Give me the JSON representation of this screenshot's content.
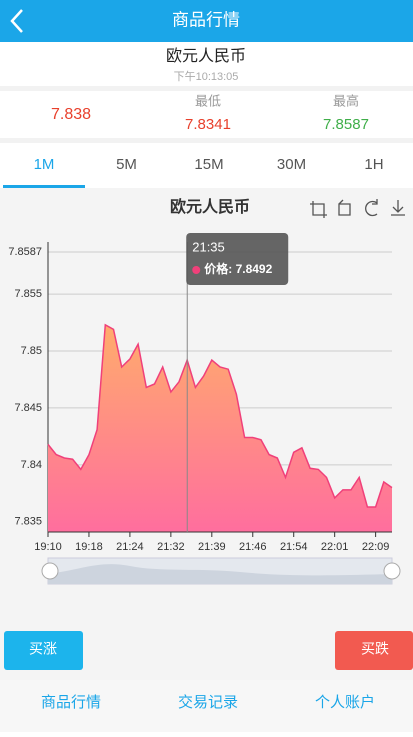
{
  "header": {
    "title": "商品行情"
  },
  "instrument": {
    "name": "欧元人民币",
    "time": "下午10:13:05"
  },
  "quote": {
    "current": 7.838,
    "low_label": "最低",
    "low": 7.8341,
    "high_label": "最高",
    "high": 7.8587
  },
  "tabs": [
    "1M",
    "5M",
    "15M",
    "30M",
    "1H"
  ],
  "chart_data": {
    "type": "area",
    "title": "欧元人民币",
    "categories": [
      "19:10",
      null,
      null,
      null,
      null,
      "19:18",
      null,
      null,
      null,
      null,
      "21:24",
      null,
      null,
      null,
      null,
      "21:32",
      null,
      null,
      null,
      null,
      "21:39",
      null,
      null,
      null,
      null,
      "21:46",
      null,
      null,
      null,
      null,
      "21:54",
      null,
      null,
      null,
      null,
      "22:01",
      null,
      null,
      null,
      null,
      "22:09",
      null,
      null
    ],
    "series": [
      {
        "color": "#f0407a",
        "values": [
          7.8418,
          7.8409,
          7.8406,
          7.8405,
          7.8396,
          7.8409,
          7.8431,
          7.8523,
          7.8519,
          7.8486,
          7.8493,
          7.8506,
          7.8468,
          7.8471,
          7.8486,
          7.8464,
          7.8473,
          7.8492,
          7.8468,
          7.8478,
          7.8492,
          7.8486,
          7.8484,
          7.8462,
          7.8424,
          7.8424,
          7.8422,
          7.8409,
          7.8406,
          7.8389,
          7.8411,
          7.8415,
          7.8397,
          7.8396,
          7.8389,
          7.8371,
          7.8378,
          7.8378,
          7.8389,
          7.8363,
          7.8363,
          7.8385,
          7.838
        ]
      }
    ],
    "ylim": [
      7.8341,
      7.8587
    ],
    "yticks": [
      7.8587,
      7.855,
      7.85,
      7.845,
      7.84,
      7.835
    ],
    "grid": true,
    "tooltip": {
      "x": "21:35",
      "label": "价格: 7.8492"
    }
  },
  "buttons": {
    "buy_up": "买涨",
    "buy_down": "买跌"
  },
  "nav": [
    "商品行情",
    "交易记录",
    "个人账户"
  ]
}
